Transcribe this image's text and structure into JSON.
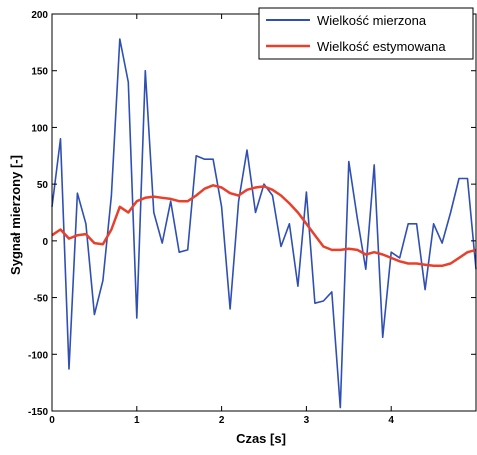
{
  "chart_data": {
    "type": "line",
    "title": "",
    "xlabel": "Czas [s]",
    "ylabel": "Sygnał mierzony [-]",
    "xlim": [
      0,
      5
    ],
    "ylim": [
      -150,
      200
    ],
    "xticks": [
      0,
      1,
      2,
      3,
      4
    ],
    "yticks": [
      -150,
      -100,
      -50,
      0,
      50,
      100,
      150,
      200
    ],
    "grid": false,
    "legend_position": "top-right",
    "series": [
      {
        "name": "Wielkość mierzona",
        "color": "#2f4fb5",
        "x": [
          0.0,
          0.1,
          0.2,
          0.3,
          0.4,
          0.5,
          0.6,
          0.7,
          0.8,
          0.9,
          1.0,
          1.1,
          1.2,
          1.3,
          1.4,
          1.5,
          1.6,
          1.7,
          1.8,
          1.9,
          2.0,
          2.1,
          2.2,
          2.3,
          2.4,
          2.5,
          2.6,
          2.7,
          2.8,
          2.9,
          3.0,
          3.1,
          3.2,
          3.3,
          3.4,
          3.5,
          3.6,
          3.7,
          3.8,
          3.9,
          4.0,
          4.1,
          4.2,
          4.3,
          4.4,
          4.5,
          4.6,
          4.7,
          4.8,
          4.9,
          5.0
        ],
        "values": [
          30,
          90,
          -113,
          42,
          15,
          -65,
          -35,
          40,
          178,
          140,
          -68,
          150,
          25,
          -2,
          35,
          -10,
          -8,
          75,
          72,
          72,
          30,
          -60,
          35,
          80,
          25,
          50,
          40,
          -5,
          15,
          -40,
          43,
          -55,
          -53,
          -45,
          -147,
          70,
          20,
          -25,
          67,
          -85,
          -10,
          -15,
          15,
          15,
          -43,
          15,
          -2,
          25,
          55,
          55,
          -25
        ],
        "visible_range": [
          0,
          5
        ]
      },
      {
        "name": "Wielkość estymowana",
        "color": "#e8402b",
        "x": [
          0.0,
          0.1,
          0.2,
          0.3,
          0.4,
          0.5,
          0.6,
          0.7,
          0.8,
          0.9,
          1.0,
          1.1,
          1.2,
          1.3,
          1.4,
          1.5,
          1.6,
          1.7,
          1.8,
          1.9,
          2.0,
          2.1,
          2.2,
          2.3,
          2.4,
          2.5,
          2.6,
          2.7,
          2.8,
          2.9,
          3.0,
          3.1,
          3.2,
          3.3,
          3.4,
          3.5,
          3.6,
          3.7,
          3.8,
          3.9,
          4.0,
          4.1,
          4.2,
          4.3,
          4.4,
          4.5,
          4.6,
          4.7,
          4.8,
          4.9,
          5.0
        ],
        "values": [
          5,
          10,
          2,
          5,
          6,
          -2,
          -3,
          10,
          30,
          25,
          35,
          38,
          39,
          38,
          37,
          35,
          35,
          40,
          46,
          49,
          47,
          42,
          40,
          45,
          47,
          48,
          45,
          40,
          33,
          25,
          15,
          5,
          -5,
          -8,
          -8,
          -7,
          -8,
          -12,
          -10,
          -12,
          -15,
          -18,
          -20,
          -20,
          -21,
          -22,
          -22,
          -20,
          -15,
          -10,
          -8
        ]
      }
    ]
  }
}
